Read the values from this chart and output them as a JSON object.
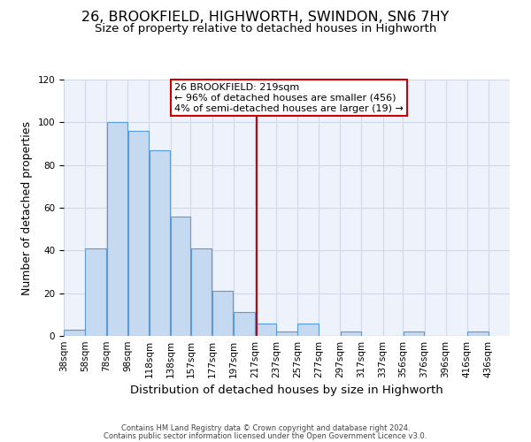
{
  "title": "26, BROOKFIELD, HIGHWORTH, SWINDON, SN6 7HY",
  "subtitle": "Size of property relative to detached houses in Highworth",
  "xlabel": "Distribution of detached houses by size in Highworth",
  "ylabel": "Number of detached properties",
  "bar_left_edges": [
    38,
    58,
    78,
    98,
    118,
    138,
    157,
    177,
    197,
    217,
    237,
    257,
    277,
    297,
    317,
    337,
    356,
    376,
    396,
    416
  ],
  "bar_widths": [
    20,
    20,
    20,
    20,
    20,
    19,
    20,
    20,
    20,
    20,
    20,
    20,
    20,
    20,
    20,
    19,
    20,
    20,
    20,
    20
  ],
  "bar_heights": [
    3,
    41,
    100,
    96,
    87,
    56,
    41,
    21,
    11,
    6,
    2,
    6,
    0,
    2,
    0,
    0,
    2,
    0,
    0,
    2
  ],
  "xlim": [
    38,
    456
  ],
  "ylim": [
    0,
    120
  ],
  "yticks": [
    0,
    20,
    40,
    60,
    80,
    100,
    120
  ],
  "x_tick_labels": [
    "38sqm",
    "58sqm",
    "78sqm",
    "98sqm",
    "118sqm",
    "138sqm",
    "157sqm",
    "177sqm",
    "197sqm",
    "217sqm",
    "237sqm",
    "257sqm",
    "277sqm",
    "297sqm",
    "317sqm",
    "337sqm",
    "356sqm",
    "376sqm",
    "396sqm",
    "416sqm",
    "436sqm"
  ],
  "bar_color": "#c5d9f1",
  "bar_edge_color": "#5b9bd5",
  "property_line_x": 219,
  "property_line_color": "#cc0000",
  "annotation_line1": "26 BROOKFIELD: 219sqm",
  "annotation_line2": "← 96% of detached houses are smaller (456)",
  "annotation_line3": "4% of semi-detached houses are larger (19) →",
  "grid_color": "#d0d8e8",
  "bg_color": "#eef2fa",
  "footer_line1": "Contains HM Land Registry data © Crown copyright and database right 2024.",
  "footer_line2": "Contains public sector information licensed under the Open Government Licence v3.0.",
  "title_fontsize": 11.5,
  "subtitle_fontsize": 9.5,
  "ylabel_fontsize": 9,
  "xlabel_fontsize": 9.5,
  "tick_fontsize": 7.5,
  "annot_fontsize": 8,
  "footer_fontsize": 6
}
